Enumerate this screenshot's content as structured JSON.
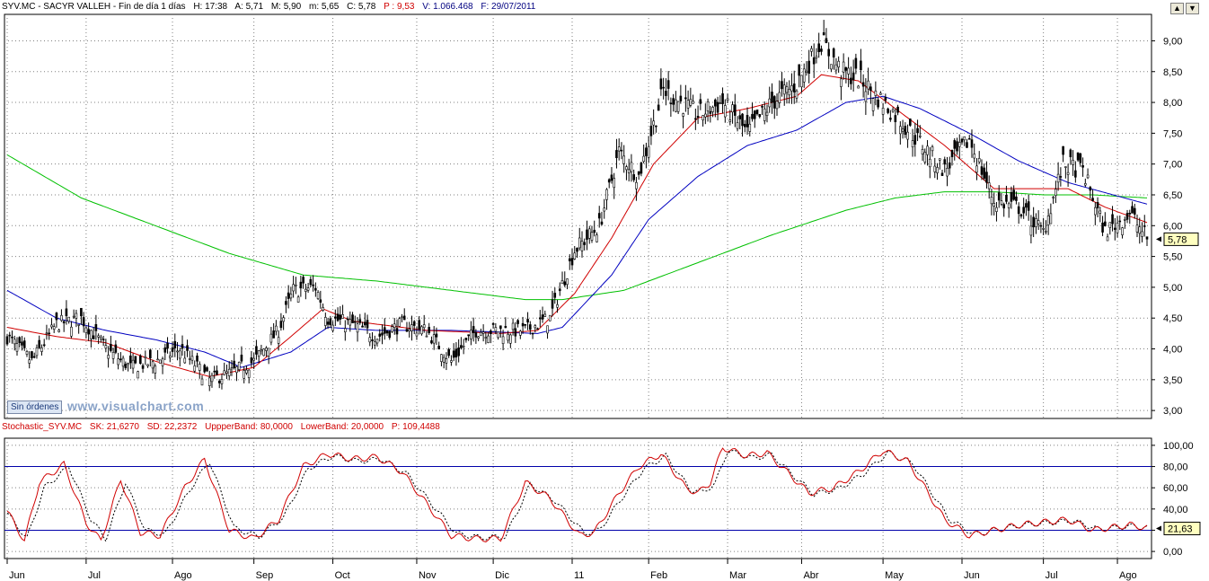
{
  "price_header": {
    "symbol": "SYV.MC - SACYR VALLEH - Fin de día 1 días",
    "high": "H: 17:38",
    "a": "A: 5,71",
    "max": "M: 5,90",
    "min": "m: 5,65",
    "close": "C: 5,78",
    "pct": "P : 9,53",
    "volume": "V: 1.066.468",
    "date": "F: 29/07/2011"
  },
  "stoch_header": {
    "name": "Stochastic_SYV.MC",
    "sk": "SK: 21,6270",
    "sd": "SD: 22,2372",
    "upper": "UppperBand: 80,0000",
    "lower": "LowerBand: 20,0000",
    "p": "P: 109,4488"
  },
  "watermark": "www.visualchart.com",
  "orders_button": "Sin órdenes",
  "window_buttons": [
    "▲",
    "▼"
  ],
  "colors": {
    "sma_short": "#d00000",
    "sma_mid": "#0000c0",
    "sma_long": "#00c000",
    "band": "#0000aa",
    "stoch_k": "#d00000",
    "stoch_d": "#000000"
  },
  "chart_data": [
    {
      "type": "candlestick",
      "title": "SYV.MC - SACYR VALLEH",
      "ylim": [
        2.9,
        9.4
      ],
      "yticks": [
        "3,00",
        "3,50",
        "4,00",
        "4,50",
        "5,00",
        "5,50",
        "6,00",
        "6,50",
        "7,00",
        "7,50",
        "8,00",
        "8,50",
        "9,00"
      ],
      "last_value_label": "5,78",
      "x_months": [
        "Jun",
        "Jul",
        "Ago",
        "Sep",
        "Oct",
        "Nov",
        "Dic",
        "11",
        "Feb",
        "Mar",
        "Abr",
        "May",
        "Jun",
        "Jul",
        "Ago"
      ],
      "close_anchors": [
        [
          0,
          4.2
        ],
        [
          10,
          3.8
        ],
        [
          20,
          4.4
        ],
        [
          30,
          4.5
        ],
        [
          40,
          4.0
        ],
        [
          50,
          3.7
        ],
        [
          60,
          3.8
        ],
        [
          70,
          4.0
        ],
        [
          82,
          3.5
        ],
        [
          90,
          3.6
        ],
        [
          100,
          3.8
        ],
        [
          110,
          4.3
        ],
        [
          116,
          4.95
        ],
        [
          125,
          5.0
        ],
        [
          130,
          4.5
        ],
        [
          140,
          4.4
        ],
        [
          150,
          4.2
        ],
        [
          160,
          4.4
        ],
        [
          170,
          4.3
        ],
        [
          180,
          3.8
        ],
        [
          190,
          4.3
        ],
        [
          200,
          4.3
        ],
        [
          210,
          4.3
        ],
        [
          220,
          4.5
        ],
        [
          230,
          5.6
        ],
        [
          240,
          6.0
        ],
        [
          248,
          7.2
        ],
        [
          256,
          6.8
        ],
        [
          266,
          8.2
        ],
        [
          280,
          7.8
        ],
        [
          290,
          8.0
        ],
        [
          300,
          7.5
        ],
        [
          310,
          8.0
        ],
        [
          320,
          8.3
        ],
        [
          330,
          9.0
        ],
        [
          338,
          8.5
        ],
        [
          345,
          8.4
        ],
        [
          360,
          7.8
        ],
        [
          380,
          6.9
        ],
        [
          390,
          7.4
        ],
        [
          400,
          6.4
        ],
        [
          410,
          6.3
        ],
        [
          420,
          5.9
        ],
        [
          428,
          7.0
        ],
        [
          436,
          6.9
        ],
        [
          445,
          5.9
        ],
        [
          455,
          6.2
        ],
        [
          462,
          5.8
        ]
      ],
      "sma_short": [
        [
          0,
          4.35
        ],
        [
          20,
          4.2
        ],
        [
          40,
          4.1
        ],
        [
          60,
          3.8
        ],
        [
          82,
          3.55
        ],
        [
          100,
          3.7
        ],
        [
          115,
          4.2
        ],
        [
          128,
          4.65
        ],
        [
          140,
          4.45
        ],
        [
          170,
          4.3
        ],
        [
          200,
          4.25
        ],
        [
          215,
          4.3
        ],
        [
          230,
          4.9
        ],
        [
          245,
          5.8
        ],
        [
          262,
          7.0
        ],
        [
          280,
          7.75
        ],
        [
          300,
          7.9
        ],
        [
          320,
          8.1
        ],
        [
          330,
          8.45
        ],
        [
          345,
          8.35
        ],
        [
          360,
          7.9
        ],
        [
          380,
          7.3
        ],
        [
          400,
          6.6
        ],
        [
          420,
          6.6
        ],
        [
          430,
          6.6
        ],
        [
          445,
          6.3
        ],
        [
          462,
          6.05
        ]
      ],
      "sma_mid": [
        [
          0,
          4.95
        ],
        [
          20,
          4.5
        ],
        [
          40,
          4.3
        ],
        [
          60,
          4.15
        ],
        [
          80,
          3.95
        ],
        [
          95,
          3.7
        ],
        [
          115,
          3.95
        ],
        [
          130,
          4.35
        ],
        [
          150,
          4.3
        ],
        [
          180,
          4.3
        ],
        [
          215,
          4.25
        ],
        [
          225,
          4.35
        ],
        [
          245,
          5.2
        ],
        [
          260,
          6.1
        ],
        [
          280,
          6.8
        ],
        [
          300,
          7.3
        ],
        [
          320,
          7.55
        ],
        [
          340,
          8.0
        ],
        [
          355,
          8.1
        ],
        [
          370,
          7.9
        ],
        [
          390,
          7.5
        ],
        [
          410,
          7.05
        ],
        [
          430,
          6.7
        ],
        [
          462,
          6.35
        ]
      ],
      "sma_long": [
        [
          0,
          7.15
        ],
        [
          30,
          6.45
        ],
        [
          60,
          6.0
        ],
        [
          90,
          5.55
        ],
        [
          120,
          5.2
        ],
        [
          150,
          5.1
        ],
        [
          180,
          4.95
        ],
        [
          210,
          4.8
        ],
        [
          225,
          4.8
        ],
        [
          250,
          4.95
        ],
        [
          280,
          5.4
        ],
        [
          310,
          5.85
        ],
        [
          340,
          6.25
        ],
        [
          360,
          6.45
        ],
        [
          380,
          6.55
        ],
        [
          400,
          6.55
        ],
        [
          420,
          6.5
        ],
        [
          440,
          6.5
        ],
        [
          462,
          6.45
        ]
      ],
      "n_bars": 463
    },
    {
      "type": "line",
      "title": "Stochastic_SYV.MC",
      "ylim": [
        -5,
        105
      ],
      "yticks": [
        "0,00",
        "20,00",
        "40,00",
        "60,00",
        "80,00",
        "100,00"
      ],
      "bands": [
        80,
        20
      ],
      "last_value_label": "21,63",
      "series": [
        {
          "name": "SK",
          "anchors": [
            [
              0,
              38
            ],
            [
              7,
              10
            ],
            [
              13,
              65
            ],
            [
              23,
              82
            ],
            [
              32,
              27
            ],
            [
              38,
              10
            ],
            [
              46,
              68
            ],
            [
              54,
              18
            ],
            [
              62,
              15
            ],
            [
              72,
              60
            ],
            [
              80,
              87
            ],
            [
              90,
              20
            ],
            [
              100,
              12
            ],
            [
              110,
              30
            ],
            [
              120,
              80
            ],
            [
              130,
              92
            ],
            [
              140,
              87
            ],
            [
              150,
              89
            ],
            [
              160,
              75
            ],
            [
              180,
              15
            ],
            [
              190,
              12
            ],
            [
              200,
              12
            ],
            [
              210,
              65
            ],
            [
              220,
              50
            ],
            [
              232,
              15
            ],
            [
              238,
              18
            ],
            [
              248,
              55
            ],
            [
              256,
              80
            ],
            [
              265,
              92
            ],
            [
              275,
              60
            ],
            [
              280,
              55
            ],
            [
              285,
              65
            ],
            [
              290,
              98
            ],
            [
              300,
              90
            ],
            [
              308,
              93
            ],
            [
              316,
              75
            ],
            [
              325,
              55
            ],
            [
              335,
              60
            ],
            [
              345,
              75
            ],
            [
              355,
              95
            ],
            [
              365,
              85
            ],
            [
              372,
              60
            ],
            [
              380,
              30
            ],
            [
              390,
              15
            ],
            [
              400,
              20
            ],
            [
              410,
              25
            ],
            [
              430,
              30
            ],
            [
              440,
              20
            ],
            [
              455,
              25
            ],
            [
              462,
              22
            ]
          ]
        },
        {
          "name": "SD",
          "anchors": [
            [
              0,
              36
            ],
            [
              8,
              12
            ],
            [
              15,
              60
            ],
            [
              25,
              80
            ],
            [
              34,
              30
            ],
            [
              40,
              12
            ],
            [
              48,
              65
            ],
            [
              56,
              20
            ],
            [
              64,
              16
            ],
            [
              74,
              58
            ],
            [
              82,
              85
            ],
            [
              92,
              22
            ],
            [
              102,
              14
            ],
            [
              112,
              32
            ],
            [
              122,
              78
            ],
            [
              132,
              90
            ],
            [
              142,
              85
            ],
            [
              152,
              87
            ],
            [
              162,
              73
            ],
            [
              182,
              17
            ],
            [
              192,
              13
            ],
            [
              202,
              14
            ],
            [
              212,
              63
            ],
            [
              222,
              48
            ],
            [
              234,
              17
            ],
            [
              240,
              20
            ],
            [
              250,
              53
            ],
            [
              258,
              78
            ],
            [
              267,
              90
            ],
            [
              277,
              58
            ],
            [
              282,
              56
            ],
            [
              287,
              64
            ],
            [
              292,
              95
            ],
            [
              302,
              88
            ],
            [
              310,
              91
            ],
            [
              318,
              73
            ],
            [
              327,
              54
            ],
            [
              337,
              59
            ],
            [
              347,
              73
            ],
            [
              357,
              93
            ],
            [
              367,
              83
            ],
            [
              374,
              58
            ],
            [
              382,
              30
            ],
            [
              392,
              16
            ],
            [
              402,
              21
            ],
            [
              412,
              25
            ],
            [
              432,
              29
            ],
            [
              442,
              21
            ],
            [
              457,
              24
            ],
            [
              462,
              22
            ]
          ]
        }
      ]
    }
  ]
}
